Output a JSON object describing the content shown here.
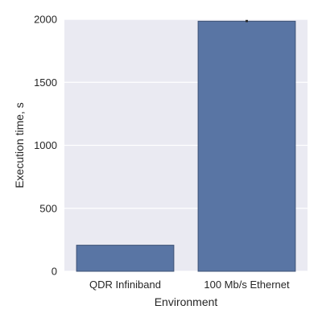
{
  "chart_data": {
    "type": "bar",
    "categories": [
      "QDR Infiniband",
      "100 Mb/s Ethernet"
    ],
    "values": [
      207,
      1985
    ],
    "error_bars": [
      null,
      [
        1978,
        1995
      ]
    ],
    "xlabel": "Environment",
    "ylabel": "Execution time, s",
    "ylim": [
      0,
      2000
    ],
    "yticks": [
      0,
      500,
      1000,
      1500,
      2000
    ],
    "grid": true,
    "colors": {
      "bar": "#5975a4",
      "bar_edge": "#3e5275",
      "plot_bg": "#eaeaf2",
      "grid": "#ffffff",
      "error_bar": "#262626"
    }
  }
}
